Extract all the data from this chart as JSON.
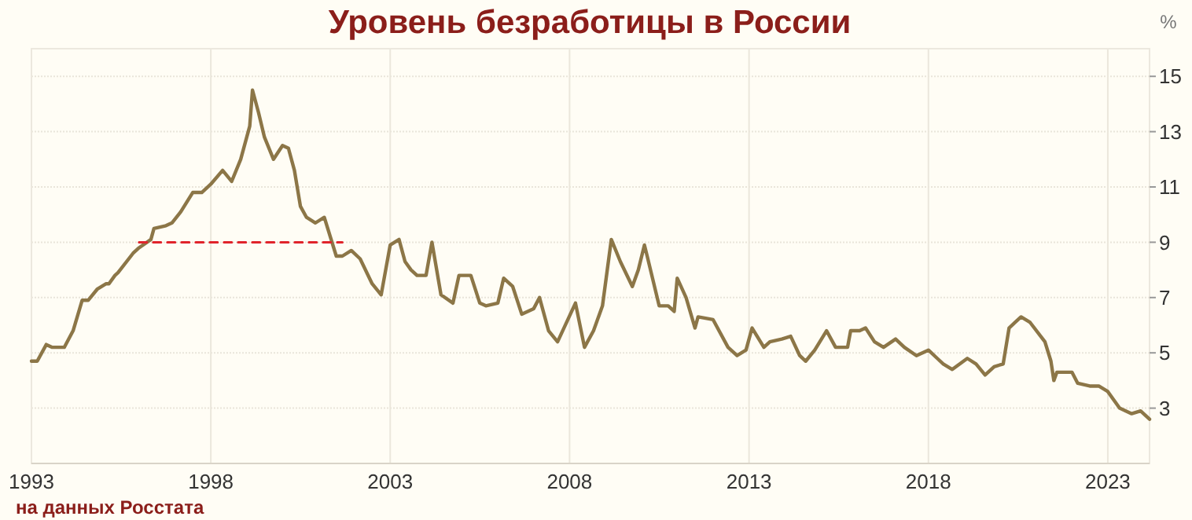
{
  "chart_data": {
    "type": "line",
    "title": "Уровень безработицы в России",
    "ylabel": "%",
    "annotations": [
      "на данных Росстата"
    ],
    "xlim": [
      "1993-01",
      "2024-03"
    ],
    "ylim": [
      1,
      16
    ],
    "xticks": [
      "1993",
      "1998",
      "2003",
      "2008",
      "2013",
      "2018",
      "2023"
    ],
    "yticks": [
      3,
      5,
      7,
      9,
      11,
      13,
      15
    ],
    "grid": true,
    "series": [
      {
        "color": "#8c7647",
        "line_style": "solid",
        "x": [
          "1993-01",
          "1993-03",
          "1993-06",
          "1993-08",
          "1993-12",
          "1994-03",
          "1994-06",
          "1994-08",
          "1994-11",
          "1995-02",
          "1995-03",
          "1995-05",
          "1995-06",
          "1995-11",
          "1996-01",
          "1996-05",
          "1996-06",
          "1996-10",
          "1996-12",
          "1997-03",
          "1997-07",
          "1997-10",
          "1998-01",
          "1998-05",
          "1998-08",
          "1998-11",
          "1999-02",
          "1999-03",
          "1999-05",
          "1999-07",
          "1999-10",
          "2000-01",
          "2000-03",
          "2000-05",
          "2000-07",
          "2000-09",
          "2000-12",
          "2001-03",
          "2001-07",
          "2001-09",
          "2001-12",
          "2002-03",
          "2002-07",
          "2002-10",
          "2003-01",
          "2003-04",
          "2003-06",
          "2003-08",
          "2003-10",
          "2004-01",
          "2004-03",
          "2004-06",
          "2004-10",
          "2004-12",
          "2005-04",
          "2005-07",
          "2005-09",
          "2006-01",
          "2006-03",
          "2006-06",
          "2006-09",
          "2007-01",
          "2007-03",
          "2007-06",
          "2007-09",
          "2008-03",
          "2008-06",
          "2008-09",
          "2008-12",
          "2009-03",
          "2009-06",
          "2009-10",
          "2009-12",
          "2010-02",
          "2010-03",
          "2010-07",
          "2010-10",
          "2010-12",
          "2011-01",
          "2011-04",
          "2011-07",
          "2011-08",
          "2012-01",
          "2012-06",
          "2012-09",
          "2012-12",
          "2013-02",
          "2013-06",
          "2013-08",
          "2013-12",
          "2014-03",
          "2014-06",
          "2014-08",
          "2014-11",
          "2015-03",
          "2015-06",
          "2015-10",
          "2015-11",
          "2016-02",
          "2016-04",
          "2016-07",
          "2016-10",
          "2017-02",
          "2017-05",
          "2017-09",
          "2018-01",
          "2018-04",
          "2018-06",
          "2018-09",
          "2019-02",
          "2019-05",
          "2019-08",
          "2019-11",
          "2020-02",
          "2020-04",
          "2020-06",
          "2020-08",
          "2020-11",
          "2021-04",
          "2021-06",
          "2021-07",
          "2021-08",
          "2022-01",
          "2022-03",
          "2022-07",
          "2022-10",
          "2023-01",
          "2023-05",
          "2023-09",
          "2023-12",
          "2024-03"
        ],
        "values": [
          4.7,
          4.7,
          5.3,
          5.2,
          5.2,
          5.8,
          6.9,
          6.9,
          7.3,
          7.5,
          7.5,
          7.8,
          7.9,
          8.6,
          8.8,
          9.1,
          9.5,
          9.6,
          9.7,
          10.1,
          10.8,
          10.8,
          11.1,
          11.6,
          11.2,
          12.0,
          13.2,
          14.5,
          13.7,
          12.8,
          12.0,
          12.5,
          12.4,
          11.6,
          10.3,
          9.9,
          9.7,
          9.9,
          8.5,
          8.5,
          8.7,
          8.4,
          7.5,
          7.1,
          8.9,
          9.1,
          8.3,
          8.0,
          7.8,
          7.8,
          9.0,
          7.1,
          6.8,
          7.8,
          7.8,
          6.8,
          6.7,
          6.8,
          7.7,
          7.4,
          6.4,
          6.6,
          7.0,
          5.8,
          5.4,
          6.8,
          5.2,
          5.8,
          6.7,
          9.1,
          8.3,
          7.4,
          8.0,
          8.9,
          8.5,
          6.7,
          6.7,
          6.5,
          7.7,
          7.0,
          5.9,
          6.3,
          6.2,
          5.2,
          4.9,
          5.1,
          5.9,
          5.2,
          5.4,
          5.5,
          5.6,
          4.9,
          4.7,
          5.1,
          5.8,
          5.2,
          5.2,
          5.8,
          5.8,
          5.9,
          5.4,
          5.2,
          5.5,
          5.2,
          4.9,
          5.1,
          4.8,
          4.6,
          4.4,
          4.8,
          4.6,
          4.2,
          4.5,
          4.6,
          5.9,
          6.1,
          6.3,
          6.1,
          5.4,
          4.7,
          4.0,
          4.3,
          4.3,
          3.9,
          3.8,
          3.8,
          3.6,
          3.0,
          2.8,
          2.9,
          2.6
        ]
      },
      {
        "color": "#e0242b",
        "line_style": "dashed",
        "x": [
          "1996-01",
          "2001-09"
        ],
        "values": [
          9,
          9
        ]
      }
    ]
  }
}
